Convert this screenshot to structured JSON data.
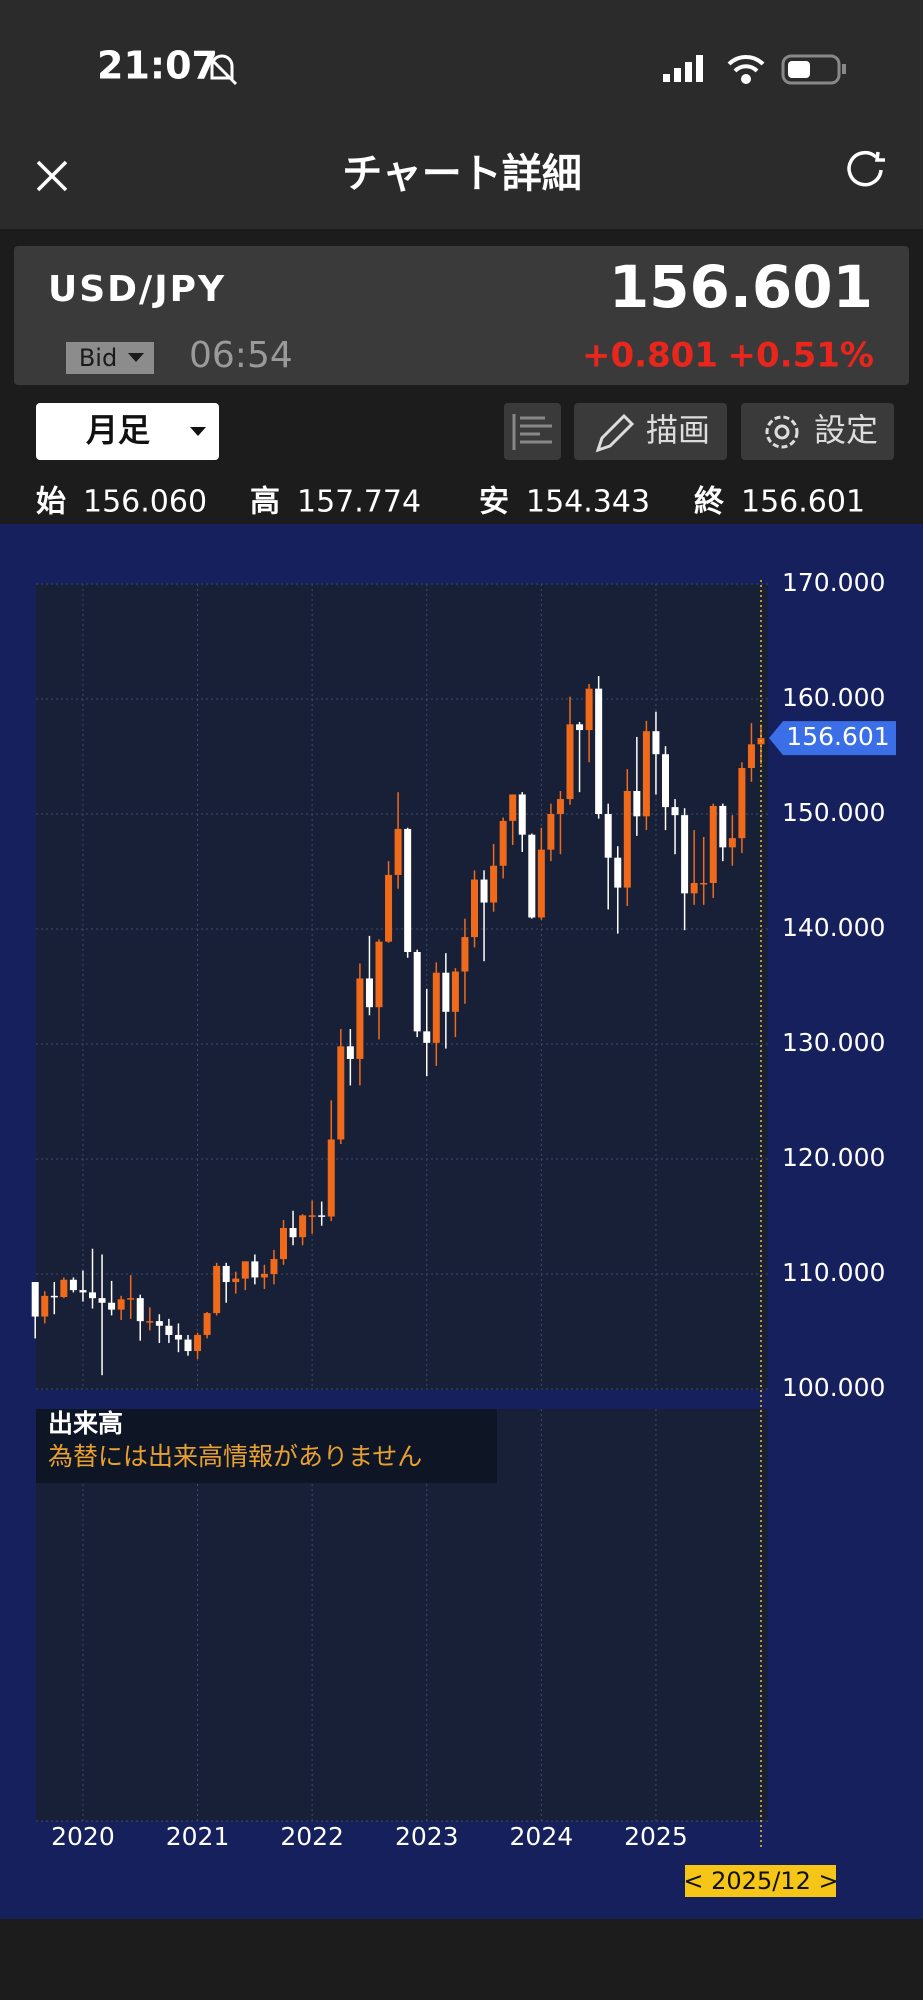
{
  "status_bar": {
    "time": "21:07"
  },
  "header": {
    "title": "チャート詳細"
  },
  "quote": {
    "symbol": "USD/JPY",
    "price": "156.601",
    "price_type": "Bid",
    "time": "06:54",
    "change": "+0.801",
    "change_percent": "+0.51%"
  },
  "controls": {
    "period": "月足",
    "draw": "描画",
    "settings": "設定"
  },
  "ohlc": [
    {
      "label": "始",
      "value": "156.060"
    },
    {
      "label": "高",
      "value": "157.774"
    },
    {
      "label": "安",
      "value": "154.343"
    },
    {
      "label": "終",
      "value": "156.601"
    }
  ],
  "chart_data": {
    "type": "candlestick",
    "x": [
      "2019/08",
      "2019/09",
      "2019/10",
      "2019/11",
      "2019/12",
      "2020/01",
      "2020/02",
      "2020/03",
      "2020/04",
      "2020/05",
      "2020/06",
      "2020/07",
      "2020/08",
      "2020/09",
      "2020/10",
      "2020/11",
      "2020/12",
      "2021/01",
      "2021/02",
      "2021/03",
      "2021/04",
      "2021/05",
      "2021/06",
      "2021/07",
      "2021/08",
      "2021/09",
      "2021/10",
      "2021/11",
      "2021/12",
      "2022/01",
      "2022/02",
      "2022/03",
      "2022/04",
      "2022/05",
      "2022/06",
      "2022/07",
      "2022/08",
      "2022/09",
      "2022/10",
      "2022/11",
      "2022/12",
      "2023/01",
      "2023/02",
      "2023/03",
      "2023/04",
      "2023/05",
      "2023/06",
      "2023/07",
      "2023/08",
      "2023/09",
      "2023/10",
      "2023/11",
      "2023/12",
      "2024/01",
      "2024/02",
      "2024/03",
      "2024/04",
      "2024/05",
      "2024/06",
      "2024/07",
      "2024/08",
      "2024/09",
      "2024/10",
      "2024/11",
      "2024/12",
      "2025/01",
      "2025/02",
      "2025/03",
      "2025/04",
      "2025/05",
      "2025/06",
      "2025/07",
      "2025/08",
      "2025/09",
      "2025/10",
      "2025/11",
      "2025/12"
    ],
    "open": [
      109.3,
      106.3,
      108.1,
      108.0,
      109.5,
      108.6,
      108.4,
      107.9,
      107.5,
      106.9,
      107.8,
      107.9,
      105.9,
      105.9,
      105.5,
      104.7,
      104.3,
      103.3,
      104.7,
      106.6,
      110.7,
      109.3,
      109.6,
      111.1,
      109.7,
      110.0,
      111.3,
      114.0,
      113.2,
      115.1,
      115.1,
      115.0,
      121.7,
      129.8,
      128.7,
      135.7,
      133.2,
      138.9,
      144.7,
      148.7,
      138.0,
      131.1,
      130.1,
      136.2,
      132.8,
      136.3,
      139.3,
      144.3,
      142.3,
      145.5,
      149.4,
      151.7,
      148.2,
      141.0,
      146.9,
      150.0,
      151.3,
      157.8,
      157.3,
      160.9,
      150.0,
      146.2,
      143.6,
      152.0,
      149.8,
      157.2,
      155.2,
      150.6,
      149.9,
      143.1,
      144.0,
      144.0,
      150.7,
      147.1,
      147.9,
      154.0,
      156.06
    ],
    "high": [
      109.3,
      108.5,
      109.3,
      109.7,
      109.7,
      110.3,
      112.2,
      111.7,
      109.4,
      108.1,
      109.9,
      108.2,
      107.1,
      106.5,
      106.1,
      105.7,
      104.7,
      104.9,
      106.7,
      110.97,
      110.97,
      110.2,
      111.1,
      111.7,
      110.8,
      112.1,
      114.7,
      115.5,
      115.2,
      116.4,
      116.3,
      125.1,
      131.3,
      131.3,
      137.0,
      139.4,
      139.1,
      145.9,
      151.9,
      148.8,
      138.2,
      134.8,
      137.1,
      137.9,
      136.6,
      140.9,
      145.1,
      145.1,
      147.4,
      149.7,
      151.7,
      151.9,
      148.3,
      148.8,
      150.9,
      152.0,
      160.2,
      158.0,
      161.3,
      162.0,
      150.9,
      147.2,
      153.9,
      156.7,
      158.1,
      158.9,
      155.9,
      151.3,
      150.5,
      148.6,
      148.0,
      150.9,
      150.9,
      149.9,
      154.5,
      157.9,
      157.774
    ],
    "low": [
      104.4,
      105.7,
      106.5,
      107.9,
      108.4,
      107.6,
      107.0,
      101.2,
      106.4,
      106.0,
      106.1,
      104.2,
      105.1,
      104.0,
      104.0,
      103.2,
      102.9,
      102.6,
      104.4,
      106.4,
      107.5,
      108.3,
      108.6,
      109.1,
      108.7,
      109.1,
      110.8,
      112.5,
      112.5,
      113.5,
      114.2,
      114.6,
      121.3,
      126.4,
      126.4,
      132.5,
      130.4,
      138.8,
      143.5,
      137.5,
      130.6,
      127.2,
      128.1,
      129.6,
      130.6,
      133.5,
      138.4,
      137.2,
      141.5,
      144.4,
      147.3,
      146.7,
      140.9,
      140.8,
      145.9,
      146.5,
      150.8,
      151.9,
      154.5,
      149.6,
      141.7,
      139.6,
      142.0,
      148.1,
      148.6,
      151.7,
      148.6,
      146.5,
      139.9,
      142.1,
      142.1,
      142.7,
      145.9,
      145.5,
      146.6,
      152.8,
      154.343
    ],
    "close": [
      106.3,
      108.1,
      108.0,
      109.5,
      108.6,
      108.4,
      107.9,
      107.5,
      106.9,
      107.8,
      107.9,
      105.9,
      105.9,
      105.5,
      104.7,
      104.3,
      103.3,
      104.7,
      106.6,
      110.7,
      109.3,
      109.6,
      111.1,
      109.7,
      110.0,
      111.3,
      114.0,
      113.2,
      115.1,
      115.1,
      115.0,
      121.7,
      129.8,
      128.7,
      135.7,
      133.2,
      138.9,
      144.7,
      148.7,
      138.0,
      131.1,
      130.1,
      136.2,
      132.8,
      136.3,
      139.3,
      144.3,
      142.3,
      145.5,
      149.4,
      151.7,
      148.2,
      141.0,
      146.9,
      150.0,
      151.3,
      157.8,
      157.3,
      160.9,
      150.0,
      146.2,
      143.6,
      152.0,
      149.8,
      157.2,
      155.2,
      150.6,
      149.9,
      143.1,
      144.0,
      144.0,
      150.7,
      147.1,
      147.9,
      154.0,
      156.06,
      156.601
    ],
    "up_color": "#f06a1c",
    "down_color": "#ffffff",
    "ylim": [
      100,
      170
    ],
    "yticks": [
      {
        "value": 100,
        "label": "100.000"
      },
      {
        "value": 110,
        "label": "110.000"
      },
      {
        "value": 120,
        "label": "120.000"
      },
      {
        "value": 130,
        "label": "130.000"
      },
      {
        "value": 140,
        "label": "140.000"
      },
      {
        "value": 150,
        "label": "150.000"
      },
      {
        "value": 160,
        "label": "160.000"
      },
      {
        "value": 170,
        "label": "170.000"
      }
    ],
    "xticks": [
      {
        "value": "2020/01",
        "label": "2020"
      },
      {
        "value": "2021/01",
        "label": "2021"
      },
      {
        "value": "2022/01",
        "label": "2022"
      },
      {
        "value": "2023/01",
        "label": "2023"
      },
      {
        "value": "2024/01",
        "label": "2024"
      },
      {
        "value": "2025/01",
        "label": "2025"
      }
    ],
    "grid": true,
    "last_price": {
      "value": 156.601,
      "label": "156.601"
    },
    "cursor_label": "< 2025/12 >",
    "volume_panel": {
      "title": "出来高",
      "message": "為替には出来高情報がありません"
    }
  }
}
